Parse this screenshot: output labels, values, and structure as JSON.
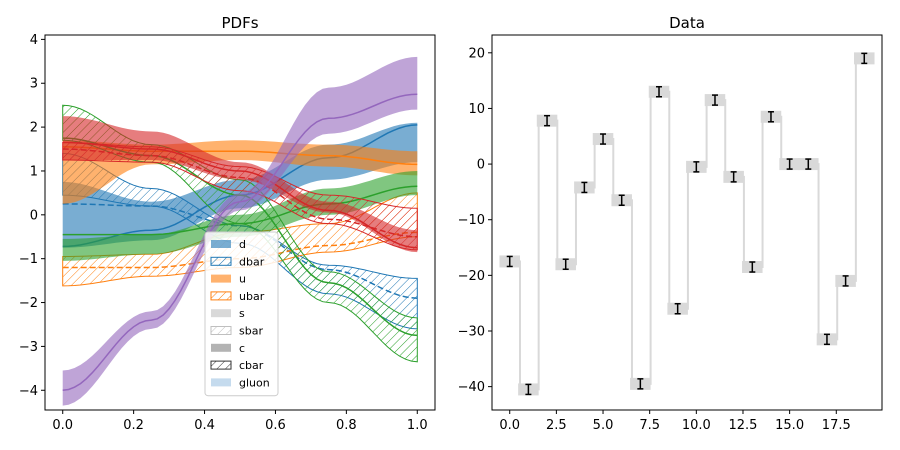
{
  "colors": {
    "blue": "#1f77b4",
    "orange": "#ff7f0e",
    "green": "#2ca02c",
    "red": "#d62728",
    "purple": "#9467bd",
    "gray": "#bfbfbf",
    "darkgray": "#808080",
    "lightblue": "#9ec3e3"
  },
  "chart_data": [
    {
      "type": "line",
      "title": "PDFs",
      "xlim": [
        -0.05,
        1.05
      ],
      "ylim": [
        -4.45,
        4.1
      ],
      "xticks": [
        0.0,
        0.2,
        0.4,
        0.6,
        0.8,
        1.0
      ],
      "xtick_labels": [
        "0.0",
        "0.2",
        "0.4",
        "0.6",
        "0.8",
        "1.0"
      ],
      "yticks": [
        -4,
        -3,
        -2,
        -1,
        0,
        1,
        2,
        3,
        4
      ],
      "ytick_labels": [
        "−4",
        "−3",
        "−2",
        "−1",
        "0",
        "1",
        "2",
        "3",
        "4"
      ],
      "series": [
        {
          "name": "d",
          "color": "blue",
          "style": "filled",
          "line": "solid",
          "x": [
            0,
            0.25,
            0.5,
            0.75,
            1.0
          ],
          "y": [
            -0.72,
            -0.35,
            0.45,
            1.3,
            2.05
          ],
          "lower": [
            -0.75,
            -0.58,
            0.15,
            0.8,
            1.2
          ],
          "upper": [
            0.75,
            0.3,
            0.8,
            1.6,
            2.1
          ]
        },
        {
          "name": "dbar",
          "color": "blue",
          "style": "hatched",
          "line": "dashed",
          "x": [
            0,
            0.25,
            0.5,
            0.75,
            1.0
          ],
          "y": [
            0.25,
            0.2,
            -0.25,
            -1.25,
            -1.9
          ],
          "lower": [
            0.45,
            0.2,
            -0.65,
            -1.8,
            -2.6
          ],
          "upper": [
            1.4,
            0.6,
            -0.25,
            -1.15,
            -1.45
          ]
        },
        {
          "name": "u",
          "color": "orange",
          "style": "filled",
          "line": "solid",
          "x": [
            0,
            0.25,
            0.5,
            0.75,
            1.0
          ],
          "y": [
            1.55,
            1.45,
            1.45,
            1.35,
            1.15
          ],
          "lower": [
            0.25,
            1.15,
            1.25,
            1.1,
            0.9
          ],
          "upper": [
            1.7,
            1.6,
            1.7,
            1.6,
            1.45
          ]
        },
        {
          "name": "ubar",
          "color": "orange",
          "style": "hatched",
          "line": "dashed",
          "x": [
            0,
            0.25,
            0.5,
            0.75,
            1.0
          ],
          "y": [
            -1.2,
            -1.2,
            -1.0,
            -0.7,
            -0.4
          ],
          "lower": [
            -1.62,
            -1.4,
            -1.2,
            -0.85,
            -0.5
          ],
          "upper": [
            -0.95,
            -0.9,
            -0.4,
            -0.2,
            0.5
          ]
        },
        {
          "name": "s",
          "color": "gray",
          "style": "filled",
          "line": "none",
          "x": [],
          "y": []
        },
        {
          "name": "sbar",
          "color": "gray",
          "style": "hatched",
          "line": "none",
          "x": [],
          "y": []
        },
        {
          "name": "c",
          "color": "darkgray",
          "style": "filled",
          "line": "none",
          "x": [],
          "y": []
        },
        {
          "name": "cbar",
          "color": "darkgray",
          "style": "hatched",
          "line": "none",
          "x": [],
          "y": []
        },
        {
          "name": "gluon",
          "color": "lightblue",
          "style": "filled",
          "line": "none",
          "x": [],
          "y": []
        },
        {
          "name": "",
          "color": "green",
          "style": "filled",
          "line": "solid",
          "x": [
            0,
            0.25,
            0.5,
            0.75,
            1.0
          ],
          "y": [
            -0.45,
            -0.45,
            -0.2,
            0.25,
            0.65
          ],
          "lower": [
            -1.05,
            -0.9,
            -0.5,
            0.0,
            0.45
          ],
          "upper": [
            -0.55,
            -0.45,
            0.0,
            0.6,
            1.0
          ]
        },
        {
          "name": "",
          "color": "green",
          "style": "hatched",
          "line": "solid",
          "x": [
            0,
            0.25,
            0.5,
            0.75,
            1.0
          ],
          "y": [
            1.75,
            1.35,
            0.45,
            -1.55,
            -2.75
          ],
          "lower": [
            1.7,
            1.2,
            -0.2,
            -2.0,
            -3.35
          ],
          "upper": [
            2.5,
            1.6,
            0.8,
            -1.3,
            -2.35
          ]
        },
        {
          "name": "",
          "color": "red",
          "style": "filled",
          "line": "solid",
          "x": [
            0,
            0.25,
            0.5,
            0.75,
            1.0
          ],
          "y": [
            1.65,
            1.5,
            1.0,
            0.1,
            -0.75
          ],
          "lower": [
            1.25,
            1.25,
            0.8,
            0.05,
            -0.85
          ],
          "upper": [
            2.25,
            1.9,
            1.2,
            0.3,
            -0.35
          ]
        },
        {
          "name": "",
          "color": "red",
          "style": "hatched",
          "line": "dashed",
          "x": [
            0,
            0.25,
            0.5,
            0.75,
            1.0
          ],
          "y": [
            1.5,
            1.35,
            0.85,
            -0.1,
            -0.5
          ],
          "lower": [
            1.25,
            1.2,
            0.55,
            -0.2,
            -0.8
          ],
          "upper": [
            1.65,
            1.55,
            1.1,
            0.45,
            0.15
          ]
        },
        {
          "name": "",
          "color": "purple",
          "style": "filled",
          "line": "solid",
          "x": [
            0,
            0.25,
            0.5,
            0.75,
            1.0
          ],
          "y": [
            -4.0,
            -2.4,
            0.3,
            2.2,
            2.75
          ],
          "lower": [
            -4.35,
            -2.6,
            0.1,
            1.85,
            2.4
          ],
          "upper": [
            -3.55,
            -2.2,
            0.5,
            2.9,
            3.6
          ]
        }
      ]
    },
    {
      "type": "scatter",
      "title": "Data",
      "xlim": [
        -0.95,
        19.95
      ],
      "ylim": [
        -44.2,
        23.2
      ],
      "xticks": [
        0,
        2.5,
        5,
        7.5,
        10,
        12.5,
        15,
        17.5
      ],
      "xtick_labels": [
        "0.0",
        "2.5",
        "5.0",
        "7.5",
        "10.0",
        "12.5",
        "15.0",
        "17.5"
      ],
      "yticks": [
        -40,
        -30,
        -20,
        -10,
        0,
        10,
        20
      ],
      "ytick_labels": [
        "−40",
        "−30",
        "−20",
        "−10",
        "0",
        "10",
        "20"
      ],
      "x": [
        0,
        1,
        2,
        3,
        4,
        5,
        6,
        7,
        8,
        9,
        10,
        11,
        12,
        13,
        14,
        15,
        16,
        17,
        18,
        19
      ],
      "y": [
        -17.5,
        -40.5,
        7.8,
        -18.0,
        -4.2,
        4.5,
        -6.5,
        -39.5,
        13.0,
        -26.0,
        -0.5,
        11.5,
        -2.3,
        -18.5,
        8.5,
        0.0,
        0.0,
        -31.5,
        -21.0,
        19.0
      ],
      "yerr": [
        0.9,
        0.9,
        0.9,
        0.9,
        0.9,
        0.9,
        0.9,
        0.9,
        0.9,
        0.9,
        0.9,
        0.9,
        0.9,
        0.9,
        0.9,
        0.9,
        0.9,
        0.9,
        0.9,
        0.9
      ],
      "step_line": true
    }
  ]
}
